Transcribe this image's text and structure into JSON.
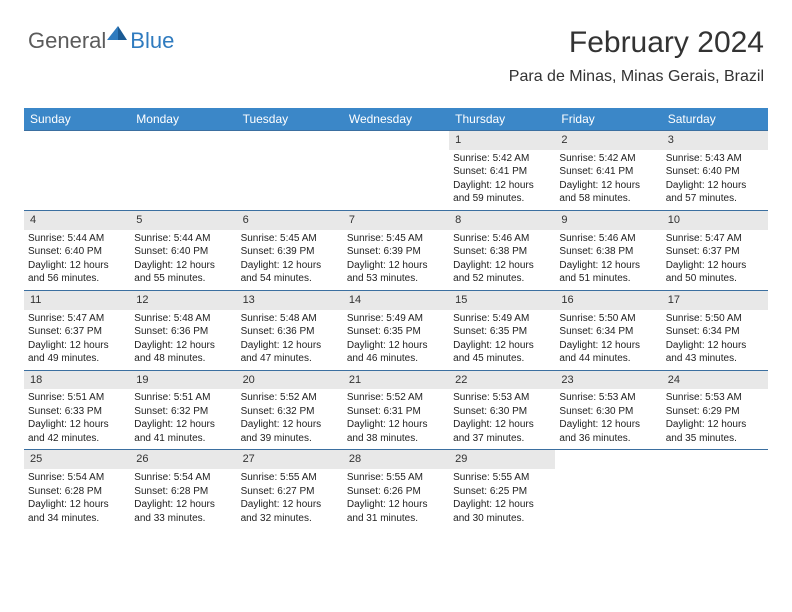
{
  "logo": {
    "general": "General",
    "blue": "Blue"
  },
  "header": {
    "title": "February 2024",
    "location": "Para de Minas, Minas Gerais, Brazil"
  },
  "colors": {
    "header_bg": "#3b87c8",
    "header_text": "#ffffff",
    "border": "#3b6fa0",
    "daynum_bg": "#e8e8e8",
    "text": "#222222",
    "logo_gray": "#5b5b5b",
    "logo_blue": "#2f7bbf"
  },
  "day_names": [
    "Sunday",
    "Monday",
    "Tuesday",
    "Wednesday",
    "Thursday",
    "Friday",
    "Saturday"
  ],
  "weeks": [
    [
      {
        "n": "",
        "sr": "",
        "ss": "",
        "dl": ""
      },
      {
        "n": "",
        "sr": "",
        "ss": "",
        "dl": ""
      },
      {
        "n": "",
        "sr": "",
        "ss": "",
        "dl": ""
      },
      {
        "n": "",
        "sr": "",
        "ss": "",
        "dl": ""
      },
      {
        "n": "1",
        "sr": "Sunrise: 5:42 AM",
        "ss": "Sunset: 6:41 PM",
        "dl": "Daylight: 12 hours and 59 minutes."
      },
      {
        "n": "2",
        "sr": "Sunrise: 5:42 AM",
        "ss": "Sunset: 6:41 PM",
        "dl": "Daylight: 12 hours and 58 minutes."
      },
      {
        "n": "3",
        "sr": "Sunrise: 5:43 AM",
        "ss": "Sunset: 6:40 PM",
        "dl": "Daylight: 12 hours and 57 minutes."
      }
    ],
    [
      {
        "n": "4",
        "sr": "Sunrise: 5:44 AM",
        "ss": "Sunset: 6:40 PM",
        "dl": "Daylight: 12 hours and 56 minutes."
      },
      {
        "n": "5",
        "sr": "Sunrise: 5:44 AM",
        "ss": "Sunset: 6:40 PM",
        "dl": "Daylight: 12 hours and 55 minutes."
      },
      {
        "n": "6",
        "sr": "Sunrise: 5:45 AM",
        "ss": "Sunset: 6:39 PM",
        "dl": "Daylight: 12 hours and 54 minutes."
      },
      {
        "n": "7",
        "sr": "Sunrise: 5:45 AM",
        "ss": "Sunset: 6:39 PM",
        "dl": "Daylight: 12 hours and 53 minutes."
      },
      {
        "n": "8",
        "sr": "Sunrise: 5:46 AM",
        "ss": "Sunset: 6:38 PM",
        "dl": "Daylight: 12 hours and 52 minutes."
      },
      {
        "n": "9",
        "sr": "Sunrise: 5:46 AM",
        "ss": "Sunset: 6:38 PM",
        "dl": "Daylight: 12 hours and 51 minutes."
      },
      {
        "n": "10",
        "sr": "Sunrise: 5:47 AM",
        "ss": "Sunset: 6:37 PM",
        "dl": "Daylight: 12 hours and 50 minutes."
      }
    ],
    [
      {
        "n": "11",
        "sr": "Sunrise: 5:47 AM",
        "ss": "Sunset: 6:37 PM",
        "dl": "Daylight: 12 hours and 49 minutes."
      },
      {
        "n": "12",
        "sr": "Sunrise: 5:48 AM",
        "ss": "Sunset: 6:36 PM",
        "dl": "Daylight: 12 hours and 48 minutes."
      },
      {
        "n": "13",
        "sr": "Sunrise: 5:48 AM",
        "ss": "Sunset: 6:36 PM",
        "dl": "Daylight: 12 hours and 47 minutes."
      },
      {
        "n": "14",
        "sr": "Sunrise: 5:49 AM",
        "ss": "Sunset: 6:35 PM",
        "dl": "Daylight: 12 hours and 46 minutes."
      },
      {
        "n": "15",
        "sr": "Sunrise: 5:49 AM",
        "ss": "Sunset: 6:35 PM",
        "dl": "Daylight: 12 hours and 45 minutes."
      },
      {
        "n": "16",
        "sr": "Sunrise: 5:50 AM",
        "ss": "Sunset: 6:34 PM",
        "dl": "Daylight: 12 hours and 44 minutes."
      },
      {
        "n": "17",
        "sr": "Sunrise: 5:50 AM",
        "ss": "Sunset: 6:34 PM",
        "dl": "Daylight: 12 hours and 43 minutes."
      }
    ],
    [
      {
        "n": "18",
        "sr": "Sunrise: 5:51 AM",
        "ss": "Sunset: 6:33 PM",
        "dl": "Daylight: 12 hours and 42 minutes."
      },
      {
        "n": "19",
        "sr": "Sunrise: 5:51 AM",
        "ss": "Sunset: 6:32 PM",
        "dl": "Daylight: 12 hours and 41 minutes."
      },
      {
        "n": "20",
        "sr": "Sunrise: 5:52 AM",
        "ss": "Sunset: 6:32 PM",
        "dl": "Daylight: 12 hours and 39 minutes."
      },
      {
        "n": "21",
        "sr": "Sunrise: 5:52 AM",
        "ss": "Sunset: 6:31 PM",
        "dl": "Daylight: 12 hours and 38 minutes."
      },
      {
        "n": "22",
        "sr": "Sunrise: 5:53 AM",
        "ss": "Sunset: 6:30 PM",
        "dl": "Daylight: 12 hours and 37 minutes."
      },
      {
        "n": "23",
        "sr": "Sunrise: 5:53 AM",
        "ss": "Sunset: 6:30 PM",
        "dl": "Daylight: 12 hours and 36 minutes."
      },
      {
        "n": "24",
        "sr": "Sunrise: 5:53 AM",
        "ss": "Sunset: 6:29 PM",
        "dl": "Daylight: 12 hours and 35 minutes."
      }
    ],
    [
      {
        "n": "25",
        "sr": "Sunrise: 5:54 AM",
        "ss": "Sunset: 6:28 PM",
        "dl": "Daylight: 12 hours and 34 minutes."
      },
      {
        "n": "26",
        "sr": "Sunrise: 5:54 AM",
        "ss": "Sunset: 6:28 PM",
        "dl": "Daylight: 12 hours and 33 minutes."
      },
      {
        "n": "27",
        "sr": "Sunrise: 5:55 AM",
        "ss": "Sunset: 6:27 PM",
        "dl": "Daylight: 12 hours and 32 minutes."
      },
      {
        "n": "28",
        "sr": "Sunrise: 5:55 AM",
        "ss": "Sunset: 6:26 PM",
        "dl": "Daylight: 12 hours and 31 minutes."
      },
      {
        "n": "29",
        "sr": "Sunrise: 5:55 AM",
        "ss": "Sunset: 6:25 PM",
        "dl": "Daylight: 12 hours and 30 minutes."
      },
      {
        "n": "",
        "sr": "",
        "ss": "",
        "dl": ""
      },
      {
        "n": "",
        "sr": "",
        "ss": "",
        "dl": ""
      }
    ]
  ]
}
